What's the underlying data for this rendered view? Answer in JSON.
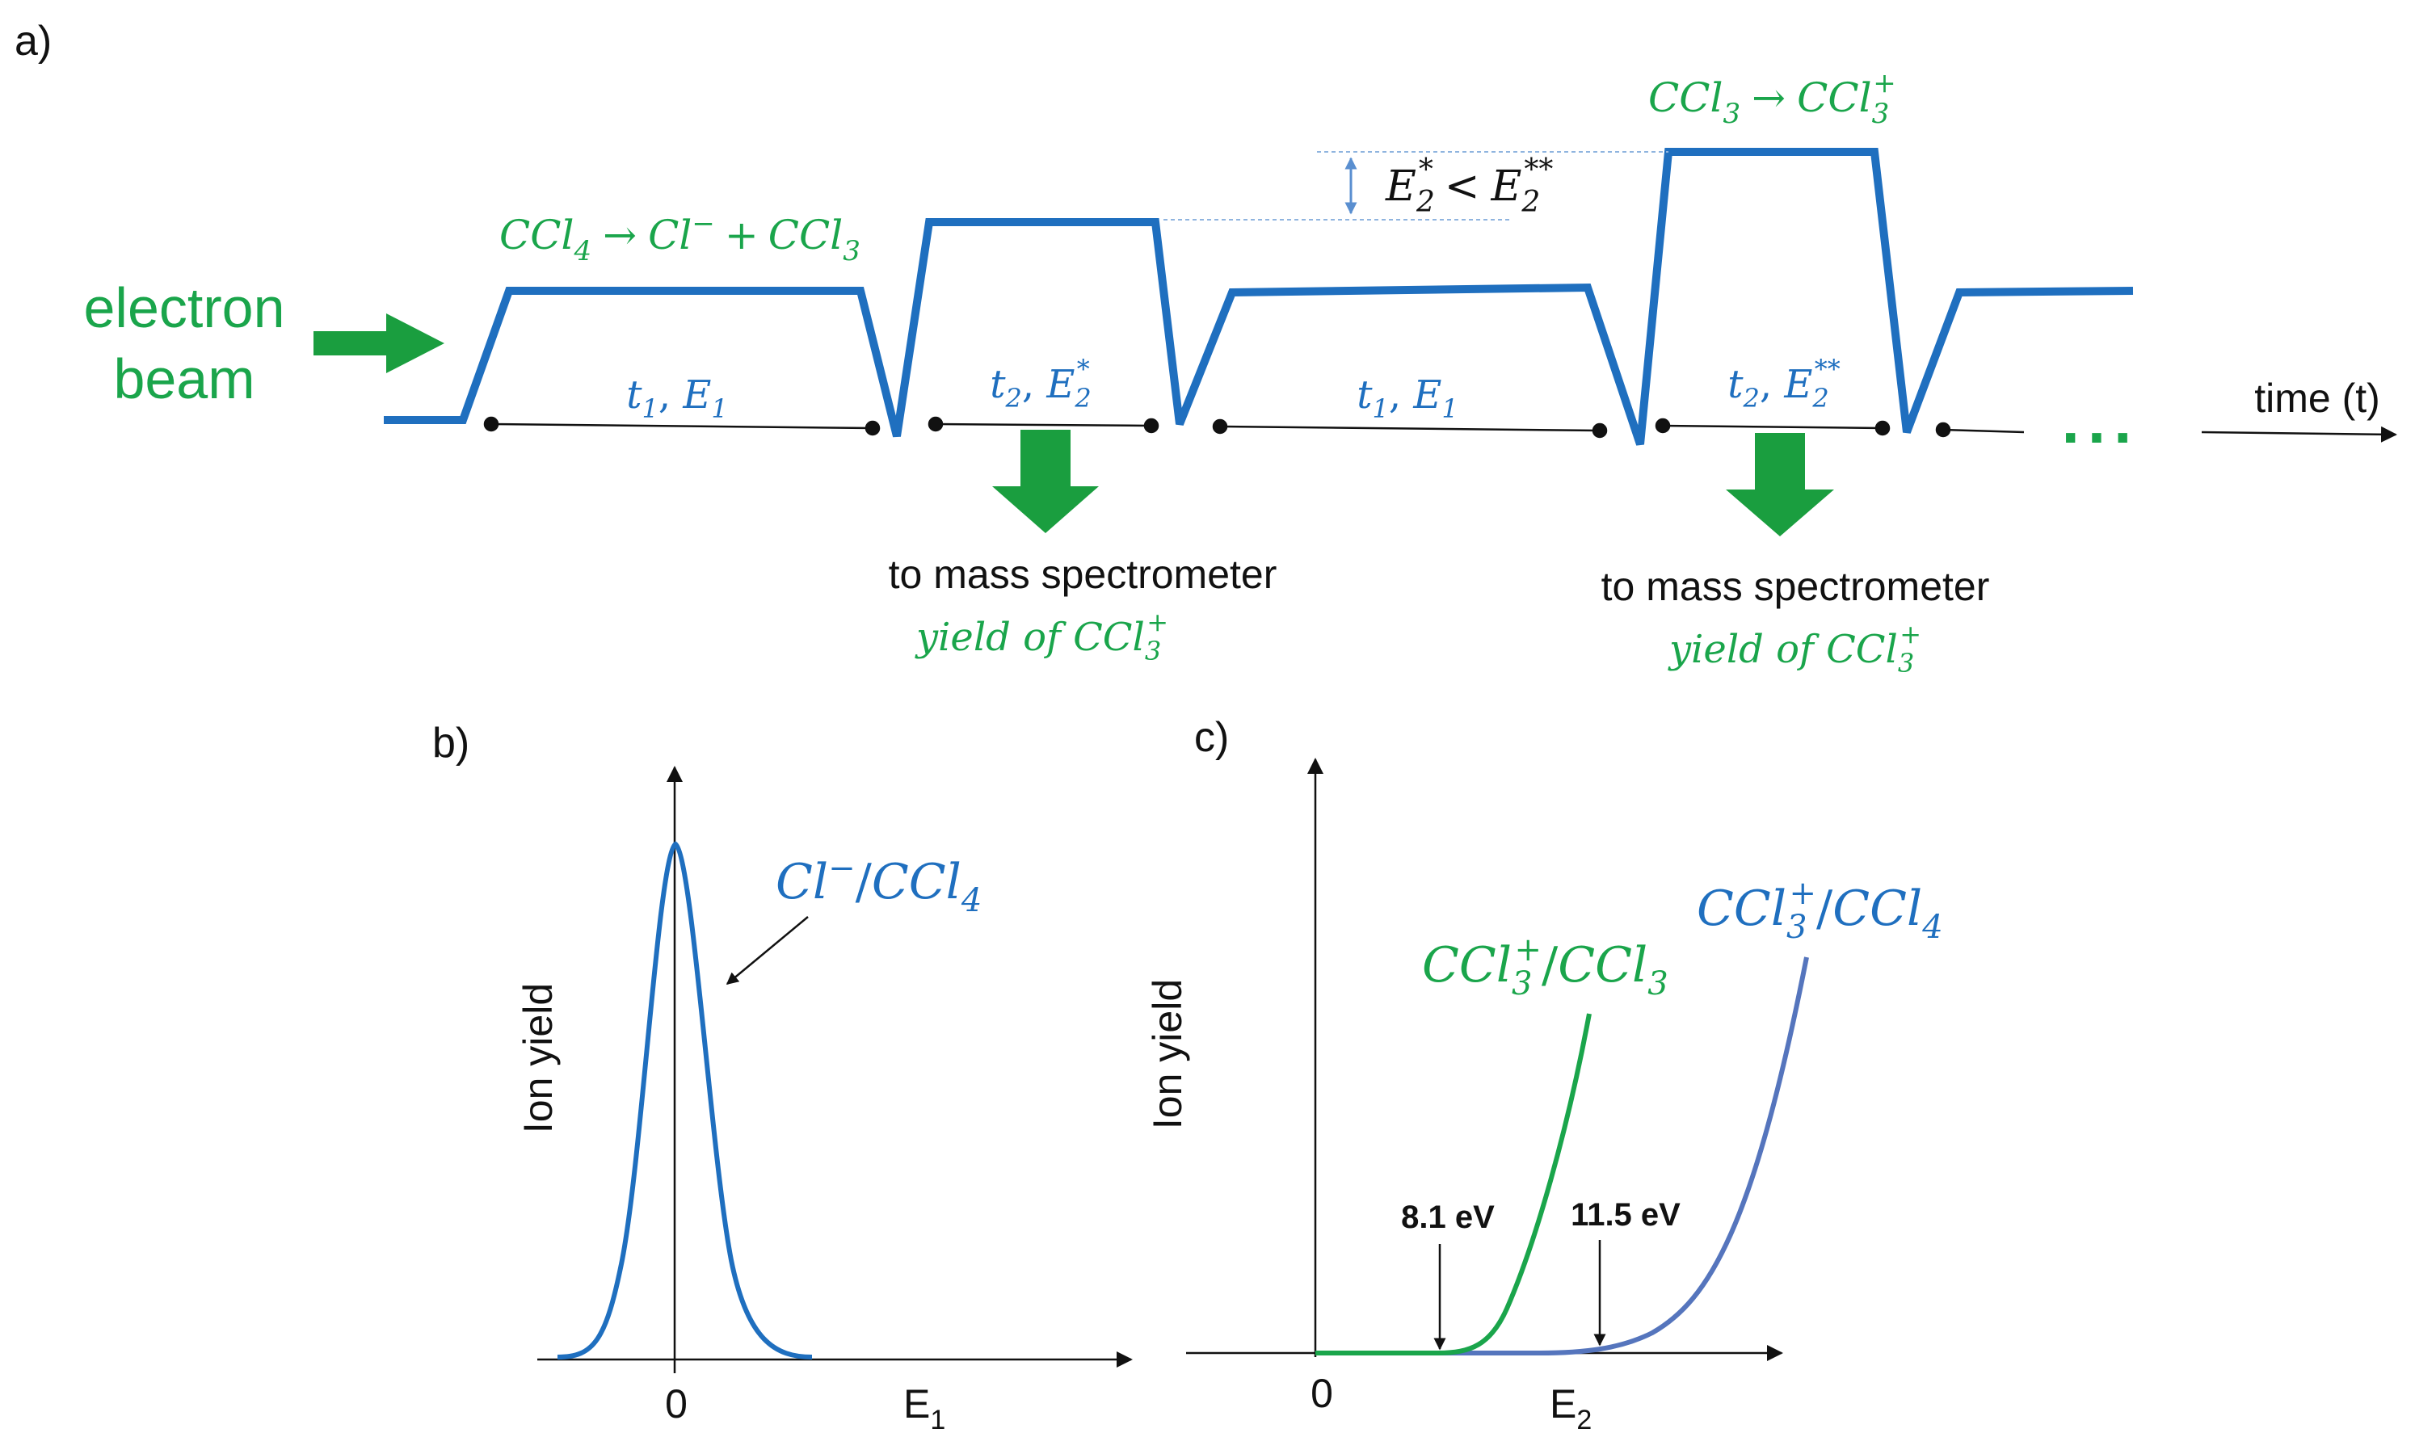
{
  "colors": {
    "blue": "#1f6fbf",
    "green": "#1aa54b",
    "arrow_green": "#1a9e3f",
    "curve_blue2": "#5575bd",
    "black": "#111111"
  },
  "panel_labels": {
    "a": "a)",
    "b": "b)",
    "c": "c)"
  },
  "panel_a": {
    "beam_label_1": "electron",
    "beam_label_2": "beam",
    "reaction_1": {
      "lhs": "CCl",
      "lhs_sub": "4",
      "arrow": "→",
      "p1": "Cl",
      "p1_sup": "−",
      "plus": "+",
      "p2": "CCl",
      "p2_sub": "3"
    },
    "reaction_2": {
      "lhs": "CCl",
      "lhs_sub": "3",
      "arrow": "→",
      "rhs": "CCl",
      "rhs_sub": "3",
      "rhs_sup": "+"
    },
    "energy_compare": {
      "e": "E",
      "sub": "2",
      "sup1": "*",
      "lt": "<",
      "sup2": "**"
    },
    "segments": [
      {
        "t": "t",
        "t_sub": "1",
        "e": "E",
        "e_sub": "1",
        "e_sup": ""
      },
      {
        "t": "t",
        "t_sub": "2",
        "e": "E",
        "e_sub": "2",
        "e_sup": "*"
      },
      {
        "t": "t",
        "t_sub": "1",
        "e": "E",
        "e_sub": "1",
        "e_sup": ""
      },
      {
        "t": "t",
        "t_sub": "2",
        "e": "E",
        "e_sub": "2",
        "e_sup": "**"
      }
    ],
    "time_label": "time (t)",
    "ellipsis": "...",
    "outputs": [
      {
        "text": "to mass spectrometer",
        "yield": "yield of ",
        "species": "CCl",
        "sub": "3",
        "sup": "+"
      },
      {
        "text": "to mass spectrometer",
        "yield": "yield of ",
        "species": "CCl",
        "sub": "3",
        "sup": "+"
      }
    ]
  },
  "panel_b": {
    "ylabel": "Ion yield",
    "xlabel": "E",
    "xlabel_sub": "1",
    "tick_zero": "0",
    "curve_label": {
      "ion": "Cl",
      "ion_sup": "−",
      "slash": "/",
      "mol": "CCl",
      "mol_sub": "4"
    }
  },
  "panel_c": {
    "ylabel": "Ion yield",
    "xlabel": "E",
    "xlabel_sub": "2",
    "tick_zero": "0",
    "green_label": {
      "ion": "CCl",
      "ion_sub": "3",
      "ion_sup": "+",
      "slash": "/",
      "mol": "CCl",
      "mol_sub": "3"
    },
    "blue_label": {
      "ion": "CCl",
      "ion_sub": "3",
      "ion_sup": "+",
      "slash": "/",
      "mol": "CCl",
      "mol_sub": "4"
    },
    "threshold_1": "8.1 eV",
    "threshold_2": "11.5 eV"
  }
}
